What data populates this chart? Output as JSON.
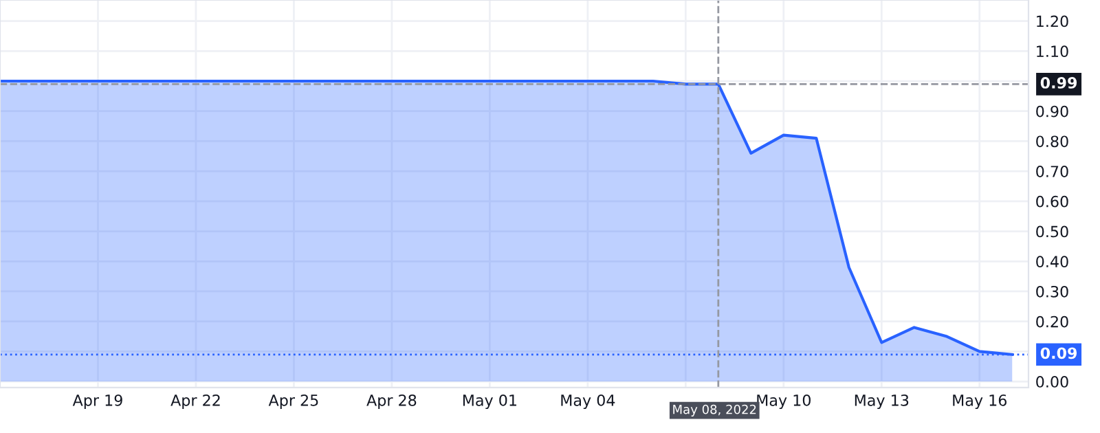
{
  "chart_data": {
    "type": "area",
    "x": [
      "2022-04-16",
      "2022-04-17",
      "2022-04-18",
      "2022-04-19",
      "2022-04-20",
      "2022-04-21",
      "2022-04-22",
      "2022-04-23",
      "2022-04-24",
      "2022-04-25",
      "2022-04-26",
      "2022-04-27",
      "2022-04-28",
      "2022-04-29",
      "2022-04-30",
      "2022-05-01",
      "2022-05-02",
      "2022-05-03",
      "2022-05-04",
      "2022-05-05",
      "2022-05-06",
      "2022-05-07",
      "2022-05-08",
      "2022-05-09",
      "2022-05-10",
      "2022-05-11",
      "2022-05-12",
      "2022-05-13",
      "2022-05-14",
      "2022-05-15",
      "2022-05-16",
      "2022-05-17"
    ],
    "series": [
      {
        "color": "#2962ff",
        "values": [
          1.0,
          1.0,
          1.0,
          1.0,
          1.0,
          1.0,
          1.0,
          1.0,
          1.0,
          1.0,
          1.0,
          1.0,
          1.0,
          1.0,
          1.0,
          1.0,
          1.0,
          1.0,
          1.0,
          1.0,
          1.0,
          0.99,
          0.99,
          0.76,
          0.82,
          0.81,
          0.38,
          0.13,
          0.18,
          0.15,
          0.1,
          0.09
        ]
      }
    ],
    "xlim": [
      "2022-04-16",
      "2022-05-17T12:00"
    ],
    "xticks": [
      {
        "value": "2022-04-19",
        "label": "Apr 19"
      },
      {
        "value": "2022-04-22",
        "label": "Apr 22"
      },
      {
        "value": "2022-04-25",
        "label": "Apr 25"
      },
      {
        "value": "2022-04-28",
        "label": "Apr 28"
      },
      {
        "value": "2022-05-01",
        "label": "May 01"
      },
      {
        "value": "2022-05-04",
        "label": "May 04"
      },
      {
        "value": "2022-05-07",
        "label": null
      },
      {
        "value": "2022-05-10",
        "label": "May 10"
      },
      {
        "value": "2022-05-13",
        "label": "May 13"
      },
      {
        "value": "2022-05-16",
        "label": "May 16"
      }
    ],
    "ylim": [
      -0.02,
      1.27
    ],
    "yticks": [
      {
        "value": 0,
        "label": "0.00"
      },
      {
        "value": 0.1,
        "label": null
      },
      {
        "value": 0.2,
        "label": "0.20"
      },
      {
        "value": 0.3,
        "label": "0.30"
      },
      {
        "value": 0.4,
        "label": "0.40"
      },
      {
        "value": 0.5,
        "label": "0.50"
      },
      {
        "value": 0.6,
        "label": "0.60"
      },
      {
        "value": 0.7,
        "label": "0.70"
      },
      {
        "value": 0.8,
        "label": "0.80"
      },
      {
        "value": 0.9,
        "label": "0.90"
      },
      {
        "value": 1.0,
        "label": null
      },
      {
        "value": 1.1,
        "label": "1.10"
      },
      {
        "value": 1.2,
        "label": "1.20"
      }
    ],
    "ref_lines": [
      {
        "axis": "y",
        "value": 0.99,
        "label": "0.99",
        "color": "#9598a1",
        "line_style": "dashed"
      },
      {
        "axis": "y",
        "value": 0.09,
        "label": "0.09",
        "color": "#2962ff",
        "line_style": "dotted"
      },
      {
        "axis": "x",
        "value": "2022-05-08",
        "label": "May 08, 2022",
        "color": "#9598a1",
        "line_style": "dashed"
      }
    ],
    "grid": true
  }
}
